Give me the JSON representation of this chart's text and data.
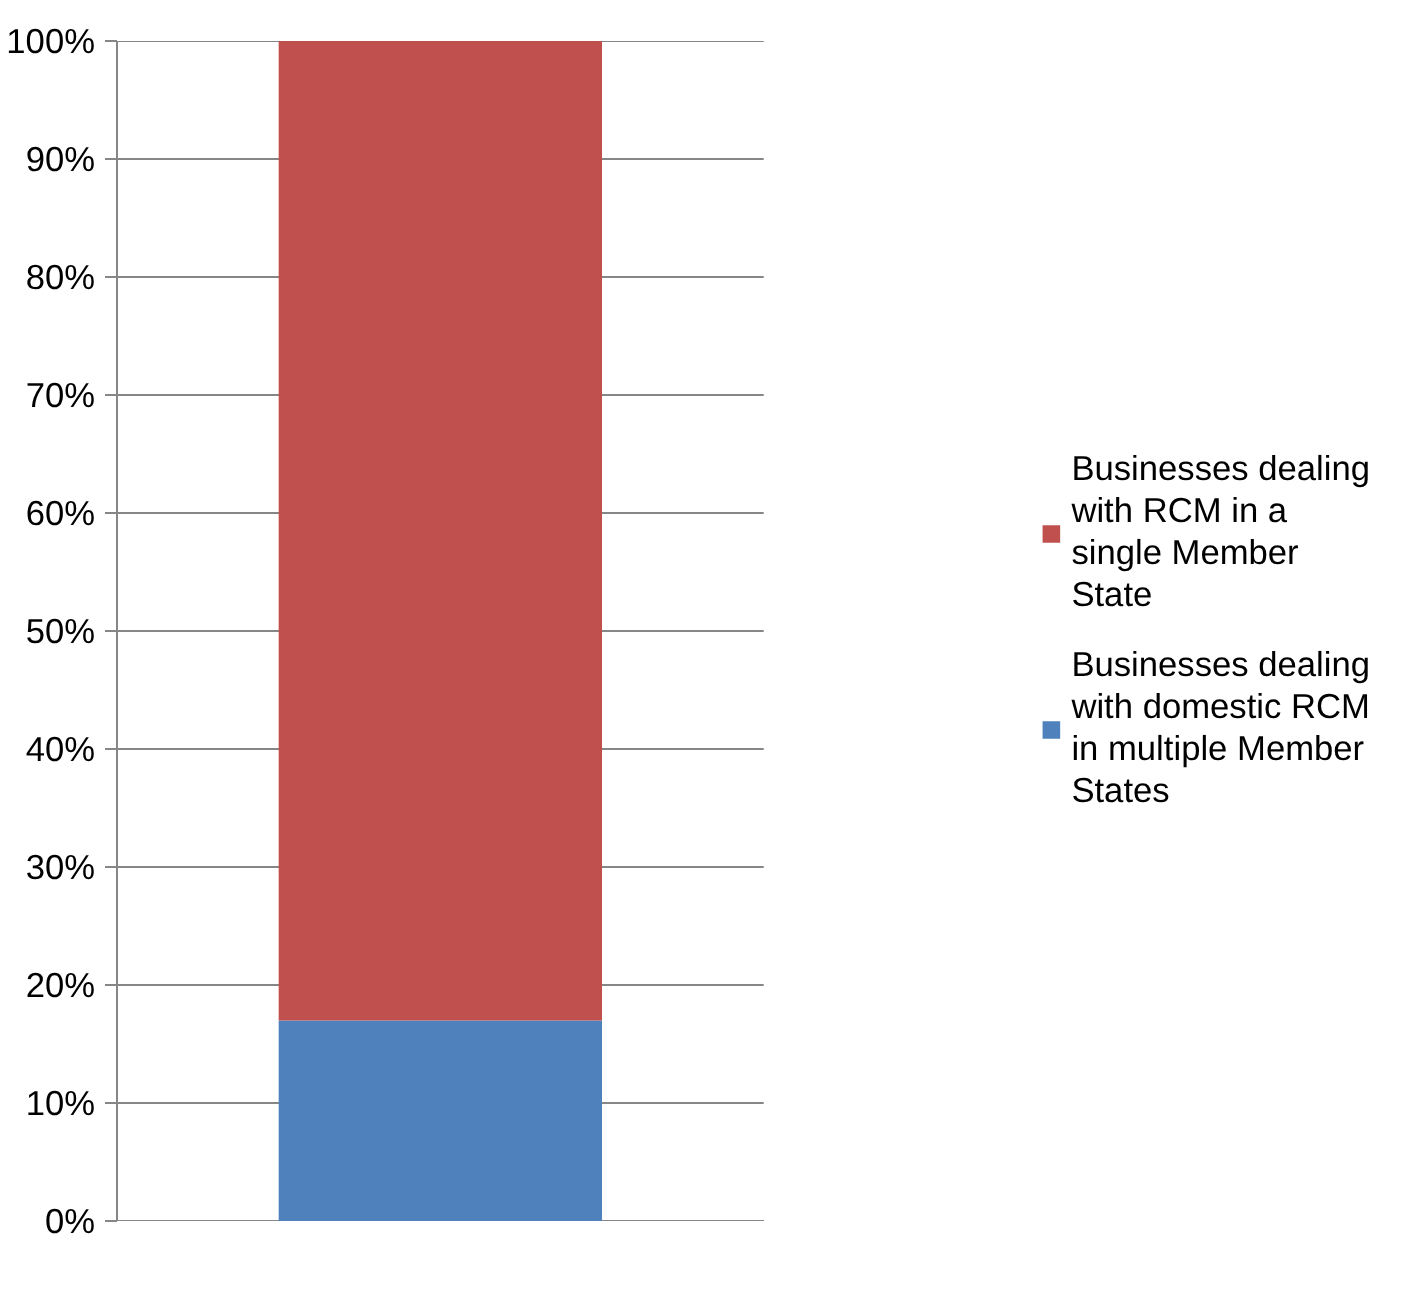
{
  "chart_data": {
    "type": "bar",
    "stacked": true,
    "categories": [
      null
    ],
    "series": [
      {
        "name": "Businesses dealing with domestic RCM in multiple Member States",
        "color": "#4f81bd",
        "values": [
          17
        ]
      },
      {
        "name": "Businesses dealing with RCM in a single Member State",
        "color": "#c0504d",
        "values": [
          83
        ]
      }
    ],
    "ylim": [
      0,
      100
    ],
    "yticks": [
      {
        "value": 0,
        "label": "0%"
      },
      {
        "value": 10,
        "label": "10%"
      },
      {
        "value": 20,
        "label": "20%"
      },
      {
        "value": 30,
        "label": "30%"
      },
      {
        "value": 40,
        "label": "40%"
      },
      {
        "value": 50,
        "label": "50%"
      },
      {
        "value": 60,
        "label": "60%"
      },
      {
        "value": 70,
        "label": "70%"
      },
      {
        "value": 80,
        "label": "80%"
      },
      {
        "value": 90,
        "label": "90%"
      },
      {
        "value": 100,
        "label": "100%"
      }
    ],
    "grid": "y",
    "legend": "right"
  }
}
